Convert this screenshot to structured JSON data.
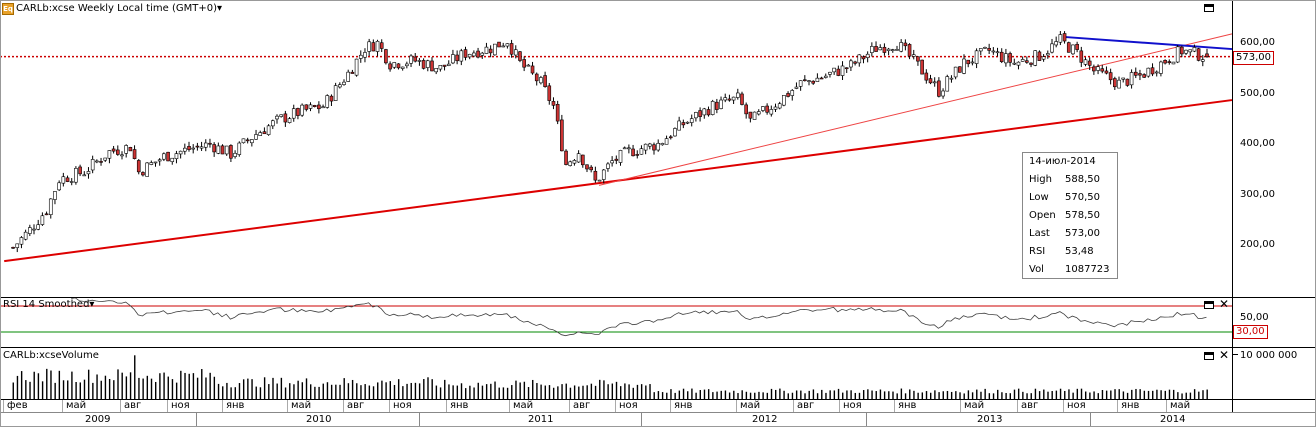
{
  "price_panel": {
    "title": "CARLb:xcse Weekly Local time (GMT+0)",
    "title_arrow": "▾",
    "icon_label": "Eq",
    "last_price_tag": "573,00",
    "y_ticks": [
      "600,00",
      "500,00",
      "400,00",
      "300,00",
      "200,00"
    ]
  },
  "rsi_panel": {
    "title": "RSI 14 Smoothed",
    "title_arrow": "▾",
    "y_tick": "50,00",
    "oversold_tag": "30,00"
  },
  "volume_panel": {
    "title": "CARLb:xcseVolume",
    "y_tick": "10 000 000"
  },
  "info_box": {
    "date": "14-июл-2014",
    "rows": [
      {
        "label": "High",
        "value": "588,50"
      },
      {
        "label": "Low",
        "value": "570,50"
      },
      {
        "label": "Open",
        "value": "578,50"
      },
      {
        "label": "Last",
        "value": "573,00"
      },
      {
        "label": "RSI",
        "value": "53,48"
      },
      {
        "label": "Vol",
        "value": "1087723"
      }
    ]
  },
  "x_axis": {
    "months": [
      "фев",
      "май",
      "авг",
      "ноя",
      "янв",
      "май",
      "авг",
      "ноя",
      "янв",
      "май",
      "авг",
      "ноя",
      "янв",
      "май",
      "авг",
      "ноя",
      "янв",
      "май",
      "авг",
      "ноя",
      "янв",
      "май"
    ],
    "years": [
      "2009",
      "2010",
      "2011",
      "2012",
      "2013",
      "2014"
    ]
  },
  "chart_data": {
    "type": "candlestick",
    "interval": "weekly",
    "ylim": [
      150,
      630
    ],
    "price_close_path": [
      [
        "2009-01-26",
        195
      ],
      [
        "2009-02-23",
        230
      ],
      [
        "2009-03-23",
        270
      ],
      [
        "2009-04-13",
        330
      ],
      [
        "2009-05-25",
        345
      ],
      [
        "2009-07-06",
        385
      ],
      [
        "2009-08-10",
        395
      ],
      [
        "2009-08-24",
        345
      ],
      [
        "2009-10-05",
        375
      ],
      [
        "2009-11-16",
        390
      ],
      [
        "2009-12-21",
        400
      ],
      [
        "2010-01-25",
        380
      ],
      [
        "2010-03-08",
        420
      ],
      [
        "2010-04-19",
        450
      ],
      [
        "2010-05-24",
        465
      ],
      [
        "2010-06-28",
        475
      ],
      [
        "2010-08-09",
        540
      ],
      [
        "2010-09-06",
        590
      ],
      [
        "2010-09-27",
        600
      ],
      [
        "2010-10-18",
        560
      ],
      [
        "2010-11-29",
        565
      ],
      [
        "2011-01-10",
        550
      ],
      [
        "2011-02-21",
        580
      ],
      [
        "2011-04-04",
        590
      ],
      [
        "2011-05-02",
        605
      ],
      [
        "2011-05-23",
        560
      ],
      [
        "2011-06-27",
        520
      ],
      [
        "2011-07-18",
        475
      ],
      [
        "2011-08-08",
        360
      ],
      [
        "2011-08-29",
        385
      ],
      [
        "2011-09-26",
        325
      ],
      [
        "2011-10-24",
        365
      ],
      [
        "2011-11-21",
        385
      ],
      [
        "2012-01-09",
        400
      ],
      [
        "2012-02-20",
        440
      ],
      [
        "2012-04-09",
        475
      ],
      [
        "2012-05-21",
        490
      ],
      [
        "2012-06-11",
        445
      ],
      [
        "2012-07-23",
        480
      ],
      [
        "2012-09-03",
        520
      ],
      [
        "2012-10-15",
        535
      ],
      [
        "2012-11-26",
        555
      ],
      [
        "2013-01-07",
        590
      ],
      [
        "2013-02-11",
        600
      ],
      [
        "2013-03-18",
        555
      ],
      [
        "2013-04-22",
        505
      ],
      [
        "2013-06-03",
        560
      ],
      [
        "2013-07-15",
        585
      ],
      [
        "2013-08-26",
        560
      ],
      [
        "2013-10-07",
        575
      ],
      [
        "2013-11-11",
        605
      ],
      [
        "2013-12-09",
        580
      ],
      [
        "2014-01-06",
        545
      ],
      [
        "2014-02-17",
        520
      ],
      [
        "2014-03-24",
        535
      ],
      [
        "2014-04-28",
        560
      ],
      [
        "2014-06-02",
        585
      ],
      [
        "2014-07-14",
        573
      ]
    ],
    "reference_lines": [
      {
        "name": "last-price",
        "type": "horizontal",
        "value": 573,
        "color": "#cc0000",
        "style": "dotted"
      }
    ],
    "trend_lines": [
      {
        "name": "long-support",
        "from": [
          "2009-01-12",
          168
        ],
        "to": [
          "2014-09-01",
          487
        ],
        "color": "#dd0000",
        "width": 2
      },
      {
        "name": "short-support",
        "from": [
          "2011-10-03",
          318
        ],
        "to": [
          "2014-09-01",
          618
        ],
        "color": "#ee4444",
        "width": 1
      },
      {
        "name": "resistance",
        "from": [
          "2013-11-18",
          612
        ],
        "to": [
          "2014-09-01",
          588
        ],
        "color": "#1010cc",
        "width": 2
      }
    ],
    "rsi": {
      "period": 14,
      "levels": [
        70,
        30
      ],
      "last": 53.48
    },
    "volume": {
      "last": 1087723,
      "y_tick": 10000000
    },
    "colors": {
      "up": "#ffffff",
      "down": "#cc3333",
      "wick": "#000000",
      "rsi_line": "#404040",
      "rsi_upper": "#cc0000",
      "rsi_lower": "#008800"
    }
  }
}
